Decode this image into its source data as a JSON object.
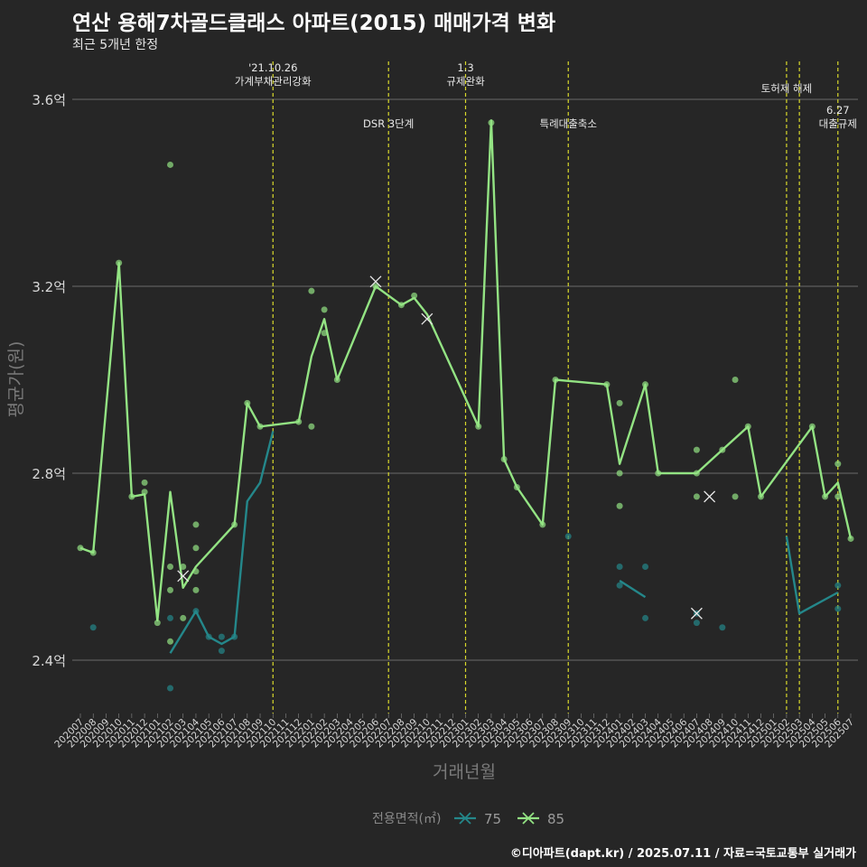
{
  "title": "연산 용해7차골드클래스 아파트(2015) 매매가격 변화",
  "subtitle": "최근 5개년 한정",
  "credit": "©디아파트(dapt.kr) / 2025.07.11 / 자료=국토교통부 실거래가",
  "colors": {
    "background": "#262626",
    "grid": "#6a6a6a",
    "event": "#d9d92b",
    "s75": "#24878a",
    "s85": "#93e383",
    "text": "#d8d8d8"
  },
  "chart_data": {
    "type": "line",
    "title": "연산 용해7차골드클래스 아파트(2015) 매매가격 변화",
    "xlabel": "거래년월",
    "ylabel": "평균가(원)",
    "ylim": [
      2.2,
      3.7
    ],
    "yticks": [
      {
        "v": 2.4,
        "label": "2.4억"
      },
      {
        "v": 2.8,
        "label": "2.8억"
      },
      {
        "v": 3.2,
        "label": "3.2억"
      },
      {
        "v": 3.6,
        "label": "3.6억"
      }
    ],
    "categories": [
      "202007",
      "202008",
      "202009",
      "202010",
      "202011",
      "202012",
      "202101",
      "202102",
      "202103",
      "202104",
      "202105",
      "202106",
      "202107",
      "202108",
      "202109",
      "202110",
      "202111",
      "202112",
      "202201",
      "202202",
      "202203",
      "202204",
      "202205",
      "202206",
      "202207",
      "202208",
      "202209",
      "202210",
      "202211",
      "202212",
      "202301",
      "202302",
      "202303",
      "202304",
      "202305",
      "202306",
      "202307",
      "202308",
      "202309",
      "202310",
      "202311",
      "202312",
      "202401",
      "202402",
      "202403",
      "202404",
      "202405",
      "202406",
      "202407",
      "202408",
      "202409",
      "202410",
      "202411",
      "202412",
      "202501",
      "202502",
      "202503",
      "202504",
      "202505",
      "202506",
      "202507"
    ],
    "legend": {
      "title": "전용면적(㎡)",
      "placement": "bottom",
      "items": [
        "75",
        "85"
      ]
    },
    "events": [
      {
        "x": 15.0,
        "label": [
          "'21.10.26",
          "가계부채관리강화"
        ],
        "row": 0
      },
      {
        "x": 24.0,
        "label": [
          "DSR 3단계"
        ],
        "row": 1
      },
      {
        "x": 30.0,
        "label": [
          "1.3",
          "규제완화"
        ],
        "row": 0
      },
      {
        "x": 38.0,
        "label": [
          "특례대출축소"
        ],
        "row": 1
      },
      {
        "x": 55.0,
        "label": [
          "토허제 해제"
        ],
        "row": 0
      },
      {
        "x": 56.0,
        "label": [],
        "row": 0
      },
      {
        "x": 59.0,
        "label": [
          "6.27",
          "대출규제"
        ],
        "row": 1
      }
    ],
    "series": [
      {
        "name": "75",
        "color": "#24878a",
        "line": [
          [
            [
              7,
              2.415
            ],
            [
              9,
              2.505
            ],
            [
              10,
              2.45
            ],
            [
              11,
              2.435
            ],
            [
              12,
              2.45
            ],
            [
              13,
              2.74
            ],
            [
              14,
              2.78
            ],
            [
              15,
              2.89
            ]
          ],
          [
            [
              42,
              2.57
            ],
            [
              44,
              2.535
            ]
          ],
          [
            [
              55,
              2.665
            ],
            [
              56,
              2.5
            ],
            [
              59,
              2.545
            ]
          ]
        ],
        "points": [
          [
            1,
            2.47
          ],
          [
            7,
            2.34
          ],
          [
            7,
            2.49
          ],
          [
            9,
            2.505
          ],
          [
            10,
            2.45
          ],
          [
            11,
            2.42
          ],
          [
            11,
            2.45
          ],
          [
            12,
            2.45
          ],
          [
            38,
            2.665
          ],
          [
            42,
            2.6
          ],
          [
            42,
            2.56
          ],
          [
            44,
            2.6
          ],
          [
            44,
            2.49
          ],
          [
            48,
            2.48
          ],
          [
            48,
            2.5
          ],
          [
            50,
            2.47
          ],
          [
            59,
            2.56
          ],
          [
            59,
            2.51
          ]
        ],
        "crosses": [
          [
            48,
            2.5
          ]
        ]
      },
      {
        "name": "85",
        "color": "#93e383",
        "line": [
          [
            [
              0,
              2.64
            ],
            [
              1,
              2.63
            ],
            [
              3,
              3.25
            ],
            [
              4,
              2.75
            ],
            [
              5,
              2.755
            ],
            [
              6,
              2.485
            ],
            [
              7,
              2.76
            ],
            [
              8,
              2.555
            ],
            [
              9,
              2.6
            ],
            [
              12,
              2.69
            ],
            [
              13,
              2.95
            ],
            [
              14,
              2.9
            ],
            [
              17,
              2.91
            ],
            [
              18,
              3.05
            ],
            [
              19,
              3.13
            ],
            [
              20,
              3.0
            ],
            [
              23,
              3.2
            ],
            [
              25,
              3.16
            ],
            [
              26,
              3.175
            ],
            [
              27,
              3.14
            ],
            [
              31,
              2.9
            ],
            [
              32,
              3.555
            ],
            [
              33,
              2.83
            ],
            [
              34,
              2.77
            ],
            [
              36,
              2.69
            ],
            [
              37,
              3.0
            ],
            [
              41,
              2.99
            ],
            [
              42,
              2.82
            ],
            [
              44,
              2.99
            ],
            [
              45,
              2.8
            ],
            [
              48,
              2.8
            ],
            [
              50,
              2.85
            ],
            [
              52,
              2.9
            ],
            [
              53,
              2.75
            ],
            [
              57,
              2.9
            ],
            [
              58,
              2.75
            ],
            [
              59,
              2.78
            ],
            [
              60,
              2.66
            ]
          ]
        ],
        "points": [
          [
            0,
            2.64
          ],
          [
            1,
            2.63
          ],
          [
            3,
            3.25
          ],
          [
            4,
            2.75
          ],
          [
            5,
            2.76
          ],
          [
            5,
            2.78
          ],
          [
            6,
            2.48
          ],
          [
            7,
            3.46
          ],
          [
            7,
            2.6
          ],
          [
            7,
            2.55
          ],
          [
            7,
            2.44
          ],
          [
            8,
            2.6
          ],
          [
            8,
            2.49
          ],
          [
            9,
            2.69
          ],
          [
            9,
            2.64
          ],
          [
            9,
            2.59
          ],
          [
            9,
            2.55
          ],
          [
            12,
            2.69
          ],
          [
            13,
            2.95
          ],
          [
            14,
            2.9
          ],
          [
            17,
            2.91
          ],
          [
            18,
            3.19
          ],
          [
            18,
            2.9
          ],
          [
            19,
            3.15
          ],
          [
            19,
            3.1
          ],
          [
            20,
            3.0
          ],
          [
            23,
            3.2
          ],
          [
            25,
            3.16
          ],
          [
            26,
            3.18
          ],
          [
            31,
            2.9
          ],
          [
            32,
            3.55
          ],
          [
            33,
            2.83
          ],
          [
            34,
            2.77
          ],
          [
            36,
            2.69
          ],
          [
            37,
            3.0
          ],
          [
            41,
            2.99
          ],
          [
            42,
            2.95
          ],
          [
            42,
            2.8
          ],
          [
            42,
            2.73
          ],
          [
            44,
            2.99
          ],
          [
            45,
            2.8
          ],
          [
            48,
            2.8
          ],
          [
            48,
            2.85
          ],
          [
            48,
            2.75
          ],
          [
            50,
            2.85
          ],
          [
            51,
            3.0
          ],
          [
            51,
            2.75
          ],
          [
            52,
            2.9
          ],
          [
            53,
            2.75
          ],
          [
            57,
            2.9
          ],
          [
            58,
            2.75
          ],
          [
            59,
            2.82
          ],
          [
            59,
            2.75
          ],
          [
            60,
            2.66
          ]
        ],
        "crosses": [
          [
            8,
            2.58
          ],
          [
            23,
            3.21
          ],
          [
            27,
            3.13
          ],
          [
            49,
            2.75
          ]
        ]
      }
    ]
  }
}
